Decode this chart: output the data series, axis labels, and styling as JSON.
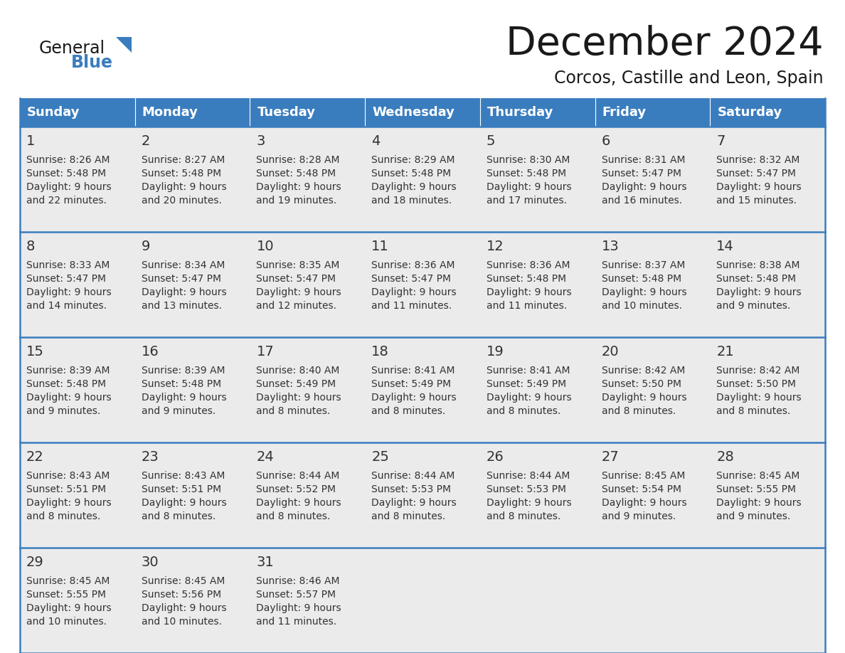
{
  "title": "December 2024",
  "subtitle": "Corcos, Castille and Leon, Spain",
  "days_of_week": [
    "Sunday",
    "Monday",
    "Tuesday",
    "Wednesday",
    "Thursday",
    "Friday",
    "Saturday"
  ],
  "header_bg": "#3a7dbf",
  "header_text": "#ffffff",
  "cell_bg": "#ebebeb",
  "row_line_color": "#3a7dbf",
  "text_color": "#333333",
  "day_number_color": "#333333",
  "figsize": [
    11.88,
    9.18
  ],
  "calendar_data": [
    [
      {
        "day": 1,
        "sunrise": "8:26 AM",
        "sunset": "5:48 PM",
        "daylight": "9 hours\nand 22 minutes."
      },
      {
        "day": 2,
        "sunrise": "8:27 AM",
        "sunset": "5:48 PM",
        "daylight": "9 hours\nand 20 minutes."
      },
      {
        "day": 3,
        "sunrise": "8:28 AM",
        "sunset": "5:48 PM",
        "daylight": "9 hours\nand 19 minutes."
      },
      {
        "day": 4,
        "sunrise": "8:29 AM",
        "sunset": "5:48 PM",
        "daylight": "9 hours\nand 18 minutes."
      },
      {
        "day": 5,
        "sunrise": "8:30 AM",
        "sunset": "5:48 PM",
        "daylight": "9 hours\nand 17 minutes."
      },
      {
        "day": 6,
        "sunrise": "8:31 AM",
        "sunset": "5:47 PM",
        "daylight": "9 hours\nand 16 minutes."
      },
      {
        "day": 7,
        "sunrise": "8:32 AM",
        "sunset": "5:47 PM",
        "daylight": "9 hours\nand 15 minutes."
      }
    ],
    [
      {
        "day": 8,
        "sunrise": "8:33 AM",
        "sunset": "5:47 PM",
        "daylight": "9 hours\nand 14 minutes."
      },
      {
        "day": 9,
        "sunrise": "8:34 AM",
        "sunset": "5:47 PM",
        "daylight": "9 hours\nand 13 minutes."
      },
      {
        "day": 10,
        "sunrise": "8:35 AM",
        "sunset": "5:47 PM",
        "daylight": "9 hours\nand 12 minutes."
      },
      {
        "day": 11,
        "sunrise": "8:36 AM",
        "sunset": "5:47 PM",
        "daylight": "9 hours\nand 11 minutes."
      },
      {
        "day": 12,
        "sunrise": "8:36 AM",
        "sunset": "5:48 PM",
        "daylight": "9 hours\nand 11 minutes."
      },
      {
        "day": 13,
        "sunrise": "8:37 AM",
        "sunset": "5:48 PM",
        "daylight": "9 hours\nand 10 minutes."
      },
      {
        "day": 14,
        "sunrise": "8:38 AM",
        "sunset": "5:48 PM",
        "daylight": "9 hours\nand 9 minutes."
      }
    ],
    [
      {
        "day": 15,
        "sunrise": "8:39 AM",
        "sunset": "5:48 PM",
        "daylight": "9 hours\nand 9 minutes."
      },
      {
        "day": 16,
        "sunrise": "8:39 AM",
        "sunset": "5:48 PM",
        "daylight": "9 hours\nand 9 minutes."
      },
      {
        "day": 17,
        "sunrise": "8:40 AM",
        "sunset": "5:49 PM",
        "daylight": "9 hours\nand 8 minutes."
      },
      {
        "day": 18,
        "sunrise": "8:41 AM",
        "sunset": "5:49 PM",
        "daylight": "9 hours\nand 8 minutes."
      },
      {
        "day": 19,
        "sunrise": "8:41 AM",
        "sunset": "5:49 PM",
        "daylight": "9 hours\nand 8 minutes."
      },
      {
        "day": 20,
        "sunrise": "8:42 AM",
        "sunset": "5:50 PM",
        "daylight": "9 hours\nand 8 minutes."
      },
      {
        "day": 21,
        "sunrise": "8:42 AM",
        "sunset": "5:50 PM",
        "daylight": "9 hours\nand 8 minutes."
      }
    ],
    [
      {
        "day": 22,
        "sunrise": "8:43 AM",
        "sunset": "5:51 PM",
        "daylight": "9 hours\nand 8 minutes."
      },
      {
        "day": 23,
        "sunrise": "8:43 AM",
        "sunset": "5:51 PM",
        "daylight": "9 hours\nand 8 minutes."
      },
      {
        "day": 24,
        "sunrise": "8:44 AM",
        "sunset": "5:52 PM",
        "daylight": "9 hours\nand 8 minutes."
      },
      {
        "day": 25,
        "sunrise": "8:44 AM",
        "sunset": "5:53 PM",
        "daylight": "9 hours\nand 8 minutes."
      },
      {
        "day": 26,
        "sunrise": "8:44 AM",
        "sunset": "5:53 PM",
        "daylight": "9 hours\nand 8 minutes."
      },
      {
        "day": 27,
        "sunrise": "8:45 AM",
        "sunset": "5:54 PM",
        "daylight": "9 hours\nand 9 minutes."
      },
      {
        "day": 28,
        "sunrise": "8:45 AM",
        "sunset": "5:55 PM",
        "daylight": "9 hours\nand 9 minutes."
      }
    ],
    [
      {
        "day": 29,
        "sunrise": "8:45 AM",
        "sunset": "5:55 PM",
        "daylight": "9 hours\nand 10 minutes."
      },
      {
        "day": 30,
        "sunrise": "8:45 AM",
        "sunset": "5:56 PM",
        "daylight": "9 hours\nand 10 minutes."
      },
      {
        "day": 31,
        "sunrise": "8:46 AM",
        "sunset": "5:57 PM",
        "daylight": "9 hours\nand 11 minutes."
      },
      null,
      null,
      null,
      null
    ]
  ]
}
